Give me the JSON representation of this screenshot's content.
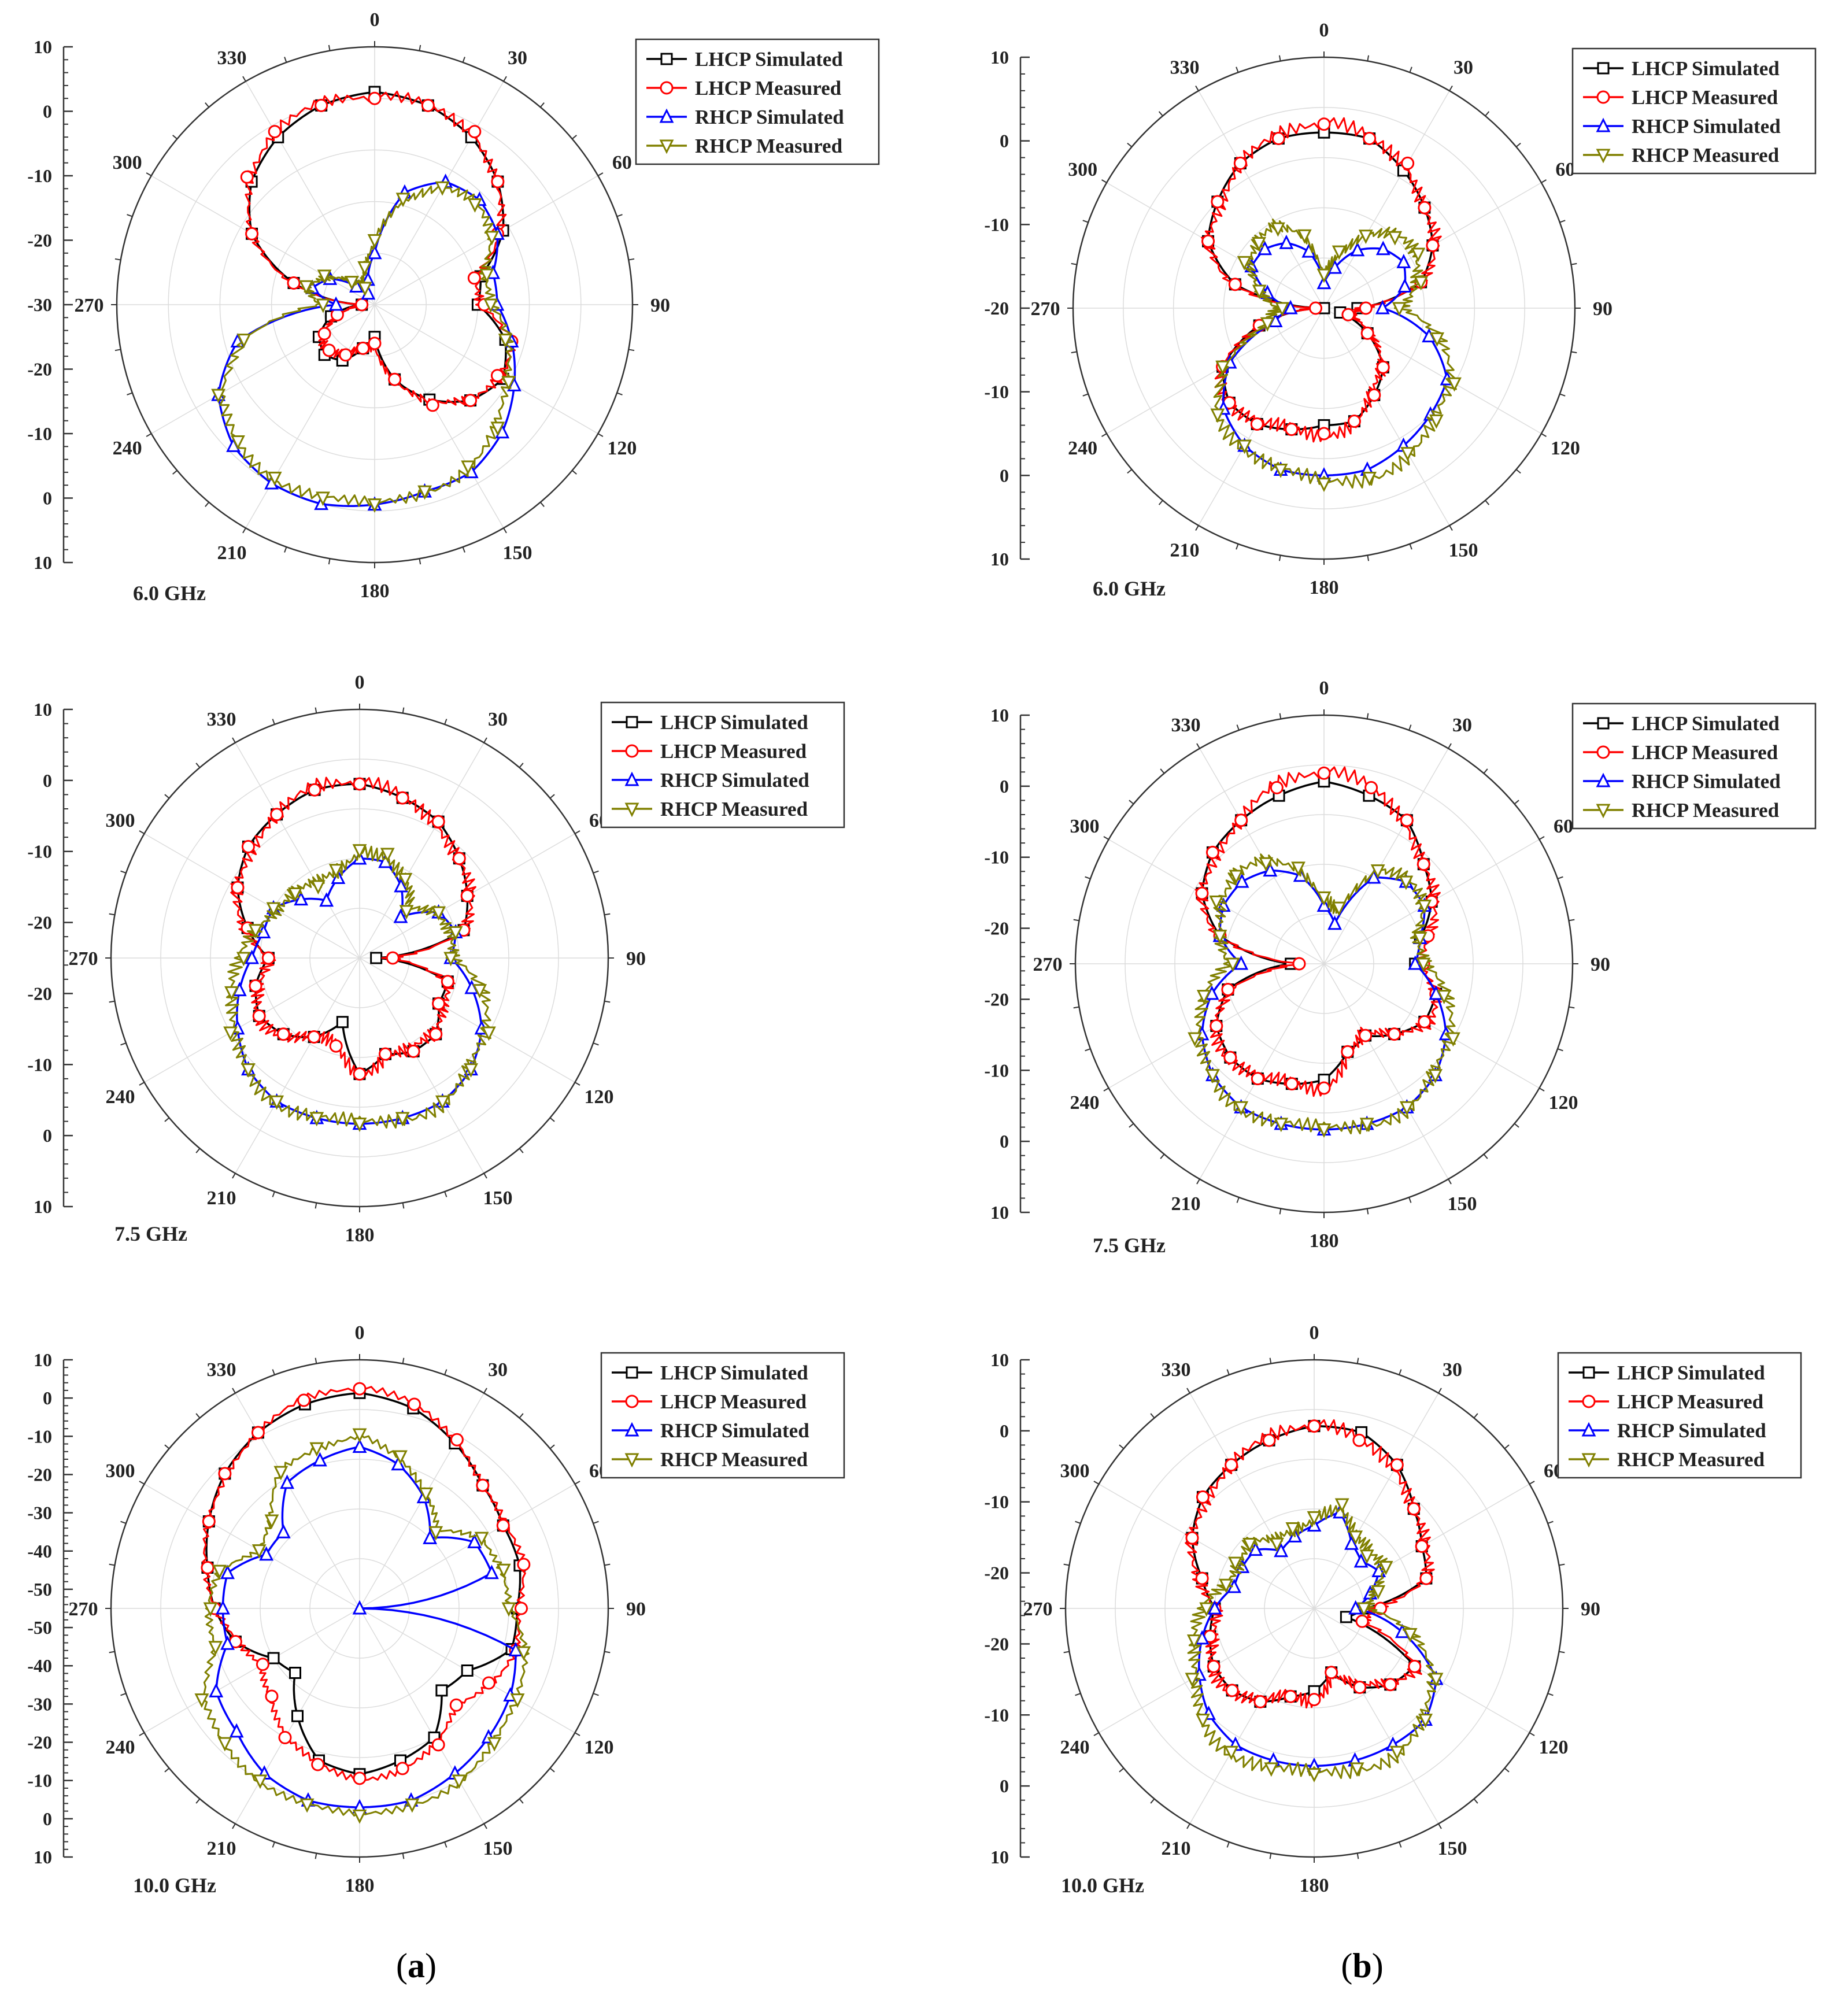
{
  "legend": [
    {
      "name": "LHCP Simulated",
      "color": "#000000",
      "marker": "square"
    },
    {
      "name": "LHCP Measured",
      "color": "#ff0000",
      "marker": "circle"
    },
    {
      "name": "RHCP Simulated",
      "color": "#0000ff",
      "marker": "triangle-up"
    },
    {
      "name": "RHCP Measured",
      "color": "#808000",
      "marker": "triangle-down"
    }
  ],
  "angle_labels": [
    "0",
    "30",
    "60",
    "90",
    "120",
    "150",
    "180",
    "210",
    "240",
    "270",
    "300",
    "330"
  ],
  "captions": [
    "(a)",
    "(b)"
  ],
  "chart_data": [
    {
      "type": "line",
      "projection": "polar",
      "panel": "a",
      "frequency_label": "6.0 GHz",
      "rlim": [
        -30,
        10
      ],
      "r_ticks": [
        "10",
        "0",
        "-10",
        "-20",
        "-30",
        "-20",
        "-10",
        "0",
        "10"
      ],
      "theta_deg": [
        0,
        15,
        30,
        45,
        60,
        75,
        90,
        105,
        120,
        135,
        150,
        165,
        180,
        195,
        210,
        225,
        240,
        255,
        270,
        285,
        300,
        315,
        330,
        345
      ],
      "series": [
        {
          "name": "LHCP Simulated",
          "r": [
            3,
            2,
            0,
            -3,
            -7,
            -13,
            -14,
            -9,
            -7,
            -9,
            -13,
            -18,
            -25,
            -23,
            -20,
            -19,
            -20,
            -23,
            -28,
            -17,
            -8,
            -3,
            0,
            2
          ]
        },
        {
          "name": "LHCP Measured",
          "r": [
            2,
            2,
            1,
            -3,
            -8,
            -14,
            -13,
            -8,
            -8,
            -9,
            -12,
            -18,
            -24,
            -23,
            -21,
            -20,
            -21,
            -24,
            -28,
            -17,
            -8,
            -2,
            1,
            2
          ]
        },
        {
          "name": "RHCP Simulated",
          "r": [
            -22,
            -12,
            -8,
            -7,
            -8,
            -11,
            -11,
            -8,
            -5,
            -2,
            0,
            0,
            1,
            2,
            2,
            1,
            -2,
            -8,
            -24,
            -20,
            -22,
            -26,
            -28,
            -26
          ]
        },
        {
          "name": "RHCP Measured",
          "r": [
            -20,
            -13,
            -9,
            -8,
            -9,
            -12,
            -12,
            -9,
            -6,
            -3,
            -1,
            0,
            1,
            1,
            1,
            0,
            -2,
            -9,
            -22,
            -19,
            -21,
            -25,
            -27,
            -24
          ]
        }
      ]
    },
    {
      "type": "line",
      "projection": "polar",
      "panel": "b",
      "frequency_label": "6.0 GHz",
      "rlim": [
        -20,
        10
      ],
      "r_ticks": [
        "10",
        "0",
        "-10",
        "-20",
        "-10",
        "0",
        "10"
      ],
      "theta_deg": [
        0,
        15,
        30,
        45,
        60,
        75,
        90,
        105,
        120,
        135,
        150,
        165,
        180,
        195,
        210,
        225,
        240,
        255,
        270,
        285,
        300,
        315,
        330,
        345
      ],
      "series": [
        {
          "name": "LHCP Simulated",
          "r": [
            1,
            1,
            -1,
            -3,
            -5,
            -8,
            -16,
            -18,
            -14,
            -10,
            -8,
            -6,
            -6,
            -5,
            -4,
            -4,
            -6,
            -12,
            -20,
            -9,
            -4,
            -2,
            0,
            1
          ]
        },
        {
          "name": "LHCP Measured",
          "r": [
            2,
            1,
            0,
            -3,
            -5,
            -8,
            -15,
            -17,
            -14,
            -10,
            -8,
            -6,
            -5,
            -5,
            -4,
            -4,
            -6,
            -12,
            -19,
            -9,
            -4,
            -2,
            0,
            1
          ]
        },
        {
          "name": "RHCP Simulated",
          "r": [
            -17,
            -15,
            -12,
            -10,
            -9,
            -10,
            -13,
            -7,
            -3,
            -2,
            -1,
            0,
            0,
            0,
            -1,
            -3,
            -7,
            -14,
            -16,
            -13,
            -10,
            -10,
            -11,
            -13
          ]
        },
        {
          "name": "RHCP Measured",
          "r": [
            -16,
            -13,
            -10,
            -8,
            -7,
            -8,
            -11,
            -6,
            -2,
            -1,
            0,
            1,
            1,
            0,
            -1,
            -2,
            -6,
            -13,
            -15,
            -12,
            -9,
            -9,
            -9,
            -11
          ]
        }
      ]
    },
    {
      "type": "line",
      "projection": "polar",
      "panel": "a",
      "frequency_label": "7.5 GHz",
      "rlim": [
        -20,
        10
      ],
      "r_ticks": [
        "10",
        "0",
        "-10",
        "-20",
        "-20",
        "-10",
        "0",
        "10"
      ],
      "theta_deg": [
        0,
        15,
        30,
        45,
        60,
        75,
        90,
        105,
        120,
        135,
        150,
        165,
        180,
        195,
        210,
        225,
        240,
        255,
        270,
        285,
        300,
        315,
        330,
        345
      ],
      "series": [
        {
          "name": "LHCP Simulated",
          "r": [
            1,
            0,
            -1,
            -3,
            -5,
            -7,
            -18,
            -9,
            -9,
            -7,
            -7,
            -8,
            -6,
            -12,
            -9,
            -7,
            -6,
            -7,
            -9,
            -6,
            -3,
            -1,
            0,
            1
          ]
        },
        {
          "name": "LHCP Measured",
          "r": [
            1,
            0,
            -1,
            -3,
            -5,
            -7,
            -16,
            -9,
            -9,
            -7,
            -7,
            -8,
            -6,
            -9,
            -9,
            -7,
            -6,
            -7,
            -9,
            -6,
            -3,
            -1,
            0,
            1
          ]
        },
        {
          "name": "RHCP Simulated",
          "r": [
            -8,
            -8,
            -10,
            -13,
            -9,
            -8,
            -9,
            -6,
            -3,
            -1,
            0,
            0,
            0,
            0,
            0,
            -1,
            -3,
            -5,
            -7,
            -8,
            -8,
            -10,
            -12,
            -10
          ]
        },
        {
          "name": "RHCP Measured",
          "r": [
            -7,
            -7,
            -9,
            -12,
            -9,
            -8,
            -9,
            -5,
            -2,
            -1,
            0,
            0,
            0,
            0,
            0,
            -1,
            -2,
            -4,
            -6,
            -7,
            -8,
            -9,
            -10,
            -9
          ]
        }
      ]
    },
    {
      "type": "line",
      "projection": "polar",
      "panel": "b",
      "frequency_label": "7.5 GHz",
      "rlim": [
        -20,
        10
      ],
      "r_ticks": [
        "10",
        "0",
        "-10",
        "-20",
        "-20",
        "-10",
        "0",
        "10"
      ],
      "theta_deg": [
        0,
        15,
        30,
        45,
        60,
        75,
        90,
        105,
        120,
        135,
        150,
        165,
        180,
        195,
        210,
        225,
        240,
        255,
        270,
        285,
        300,
        315,
        330,
        345
      ],
      "series": [
        {
          "name": "LHCP Simulated",
          "r": [
            2,
            1,
            0,
            -3,
            -5,
            -8,
            -9,
            -6,
            -6,
            -8,
            -10,
            -9,
            -6,
            -5,
            -4,
            -4,
            -5,
            -8,
            -16,
            -7,
            -3,
            -1,
            0,
            1
          ]
        },
        {
          "name": "LHCP Measured",
          "r": [
            3,
            2,
            0,
            -3,
            -5,
            -7,
            -8,
            -6,
            -6,
            -8,
            -10,
            -9,
            -5,
            -5,
            -4,
            -4,
            -5,
            -8,
            -17,
            -7,
            -3,
            -1,
            0,
            2
          ]
        },
        {
          "name": "RHCP Simulated",
          "r": [
            -13,
            -15,
            -8,
            -6,
            -6,
            -8,
            -9,
            -6,
            -3,
            -1,
            0,
            0,
            0,
            0,
            0,
            -1,
            -3,
            -6,
            -10,
            -7,
            -6,
            -6,
            -7,
            -9
          ]
        },
        {
          "name": "RHCP Measured",
          "r": [
            -12,
            -13,
            -7,
            -6,
            -6,
            -8,
            -8,
            -5,
            -2,
            -1,
            0,
            0,
            0,
            0,
            0,
            -1,
            -2,
            -5,
            -9,
            -7,
            -5,
            -5,
            -6,
            -8
          ]
        }
      ]
    },
    {
      "type": "line",
      "projection": "polar",
      "panel": "a",
      "frequency_label": "10.0 GHz",
      "rlim": [
        -50,
        10
      ],
      "r_ticks": [
        "10",
        "0",
        "-10",
        "-20",
        "-30",
        "-40",
        "-50",
        "-50",
        "-40",
        "-30",
        "-20",
        "-10",
        "0",
        "10"
      ],
      "theta_deg": [
        0,
        15,
        30,
        45,
        60,
        75,
        90,
        105,
        120,
        135,
        150,
        165,
        180,
        195,
        210,
        225,
        240,
        255,
        270,
        285,
        300,
        315,
        330,
        345
      ],
      "series": [
        {
          "name": "LHCP Simulated",
          "r": [
            2,
            0,
            -4,
            -8,
            -10,
            -10,
            -12,
            -12,
            -20,
            -22,
            -14,
            -12,
            -10,
            -12,
            -20,
            -28,
            -26,
            -19,
            -15,
            -12,
            -8,
            -4,
            -1,
            1
          ]
        },
        {
          "name": "LHCP Measured",
          "r": [
            3,
            1,
            -3,
            -8,
            -10,
            -9,
            -11,
            -11,
            -14,
            -17,
            -12,
            -10,
            -9,
            -11,
            -14,
            -20,
            -23,
            -19,
            -15,
            -12,
            -8,
            -4,
            -1,
            2
          ]
        },
        {
          "name": "RHCP Simulated",
          "r": [
            -11,
            -14,
            -19,
            -26,
            -18,
            -17,
            -50,
            -11,
            -8,
            -6,
            -4,
            -2,
            -2,
            -2,
            -4,
            -8,
            -10,
            -17,
            -17,
            -17,
            -24,
            -24,
            -15,
            -13
          ]
        },
        {
          "name": "RHCP Measured",
          "r": [
            -8,
            -12,
            -18,
            -24,
            -16,
            -14,
            -14,
            -9,
            -6,
            -4,
            -2,
            -1,
            0,
            -1,
            -2,
            -4,
            -6,
            -14,
            -14,
            -15,
            -22,
            -20,
            -12,
            -10
          ]
        }
      ]
    },
    {
      "type": "line",
      "projection": "polar",
      "panel": "b",
      "frequency_label": "10.0 GHz",
      "rlim": [
        -20,
        10
      ],
      "r_ticks": [
        "10",
        "0",
        "-10",
        "-20",
        "-20",
        "-10",
        "0",
        "10"
      ],
      "theta_deg": [
        0,
        15,
        30,
        45,
        60,
        75,
        90,
        105,
        120,
        135,
        150,
        165,
        180,
        195,
        210,
        225,
        240,
        255,
        270,
        285,
        300,
        315,
        330,
        345
      ],
      "series": [
        {
          "name": "LHCP Simulated",
          "r": [
            2,
            2,
            0,
            -3,
            -5,
            -6,
            -14,
            -16,
            -6,
            -7,
            -9,
            -12,
            -10,
            -9,
            -7,
            -6,
            -6,
            -7,
            -8,
            -6,
            -3,
            -1,
            0,
            1
          ]
        },
        {
          "name": "LHCP Measured",
          "r": [
            2,
            1,
            0,
            -3,
            -5,
            -6,
            -12,
            -14,
            -6,
            -7,
            -9,
            -12,
            -9,
            -9,
            -7,
            -6,
            -6,
            -7,
            -8,
            -6,
            -3,
            -1,
            0,
            1
          ]
        },
        {
          "name": "RHCP Simulated",
          "r": [
            -10,
            -8,
            -11,
            -12,
            -11,
            -13,
            -15,
            -9,
            -3,
            -1,
            -1,
            -1,
            -1,
            -1,
            -1,
            -2,
            -4,
            -6,
            -8,
            -10,
            -10,
            -10,
            -12,
            -11
          ]
        },
        {
          "name": "RHCP Measured",
          "r": [
            -9,
            -7,
            -10,
            -11,
            -10,
            -12,
            -14,
            -8,
            -3,
            -1,
            0,
            0,
            0,
            0,
            0,
            -1,
            -3,
            -5,
            -7,
            -9,
            -9,
            -9,
            -11,
            -10
          ]
        }
      ]
    }
  ]
}
